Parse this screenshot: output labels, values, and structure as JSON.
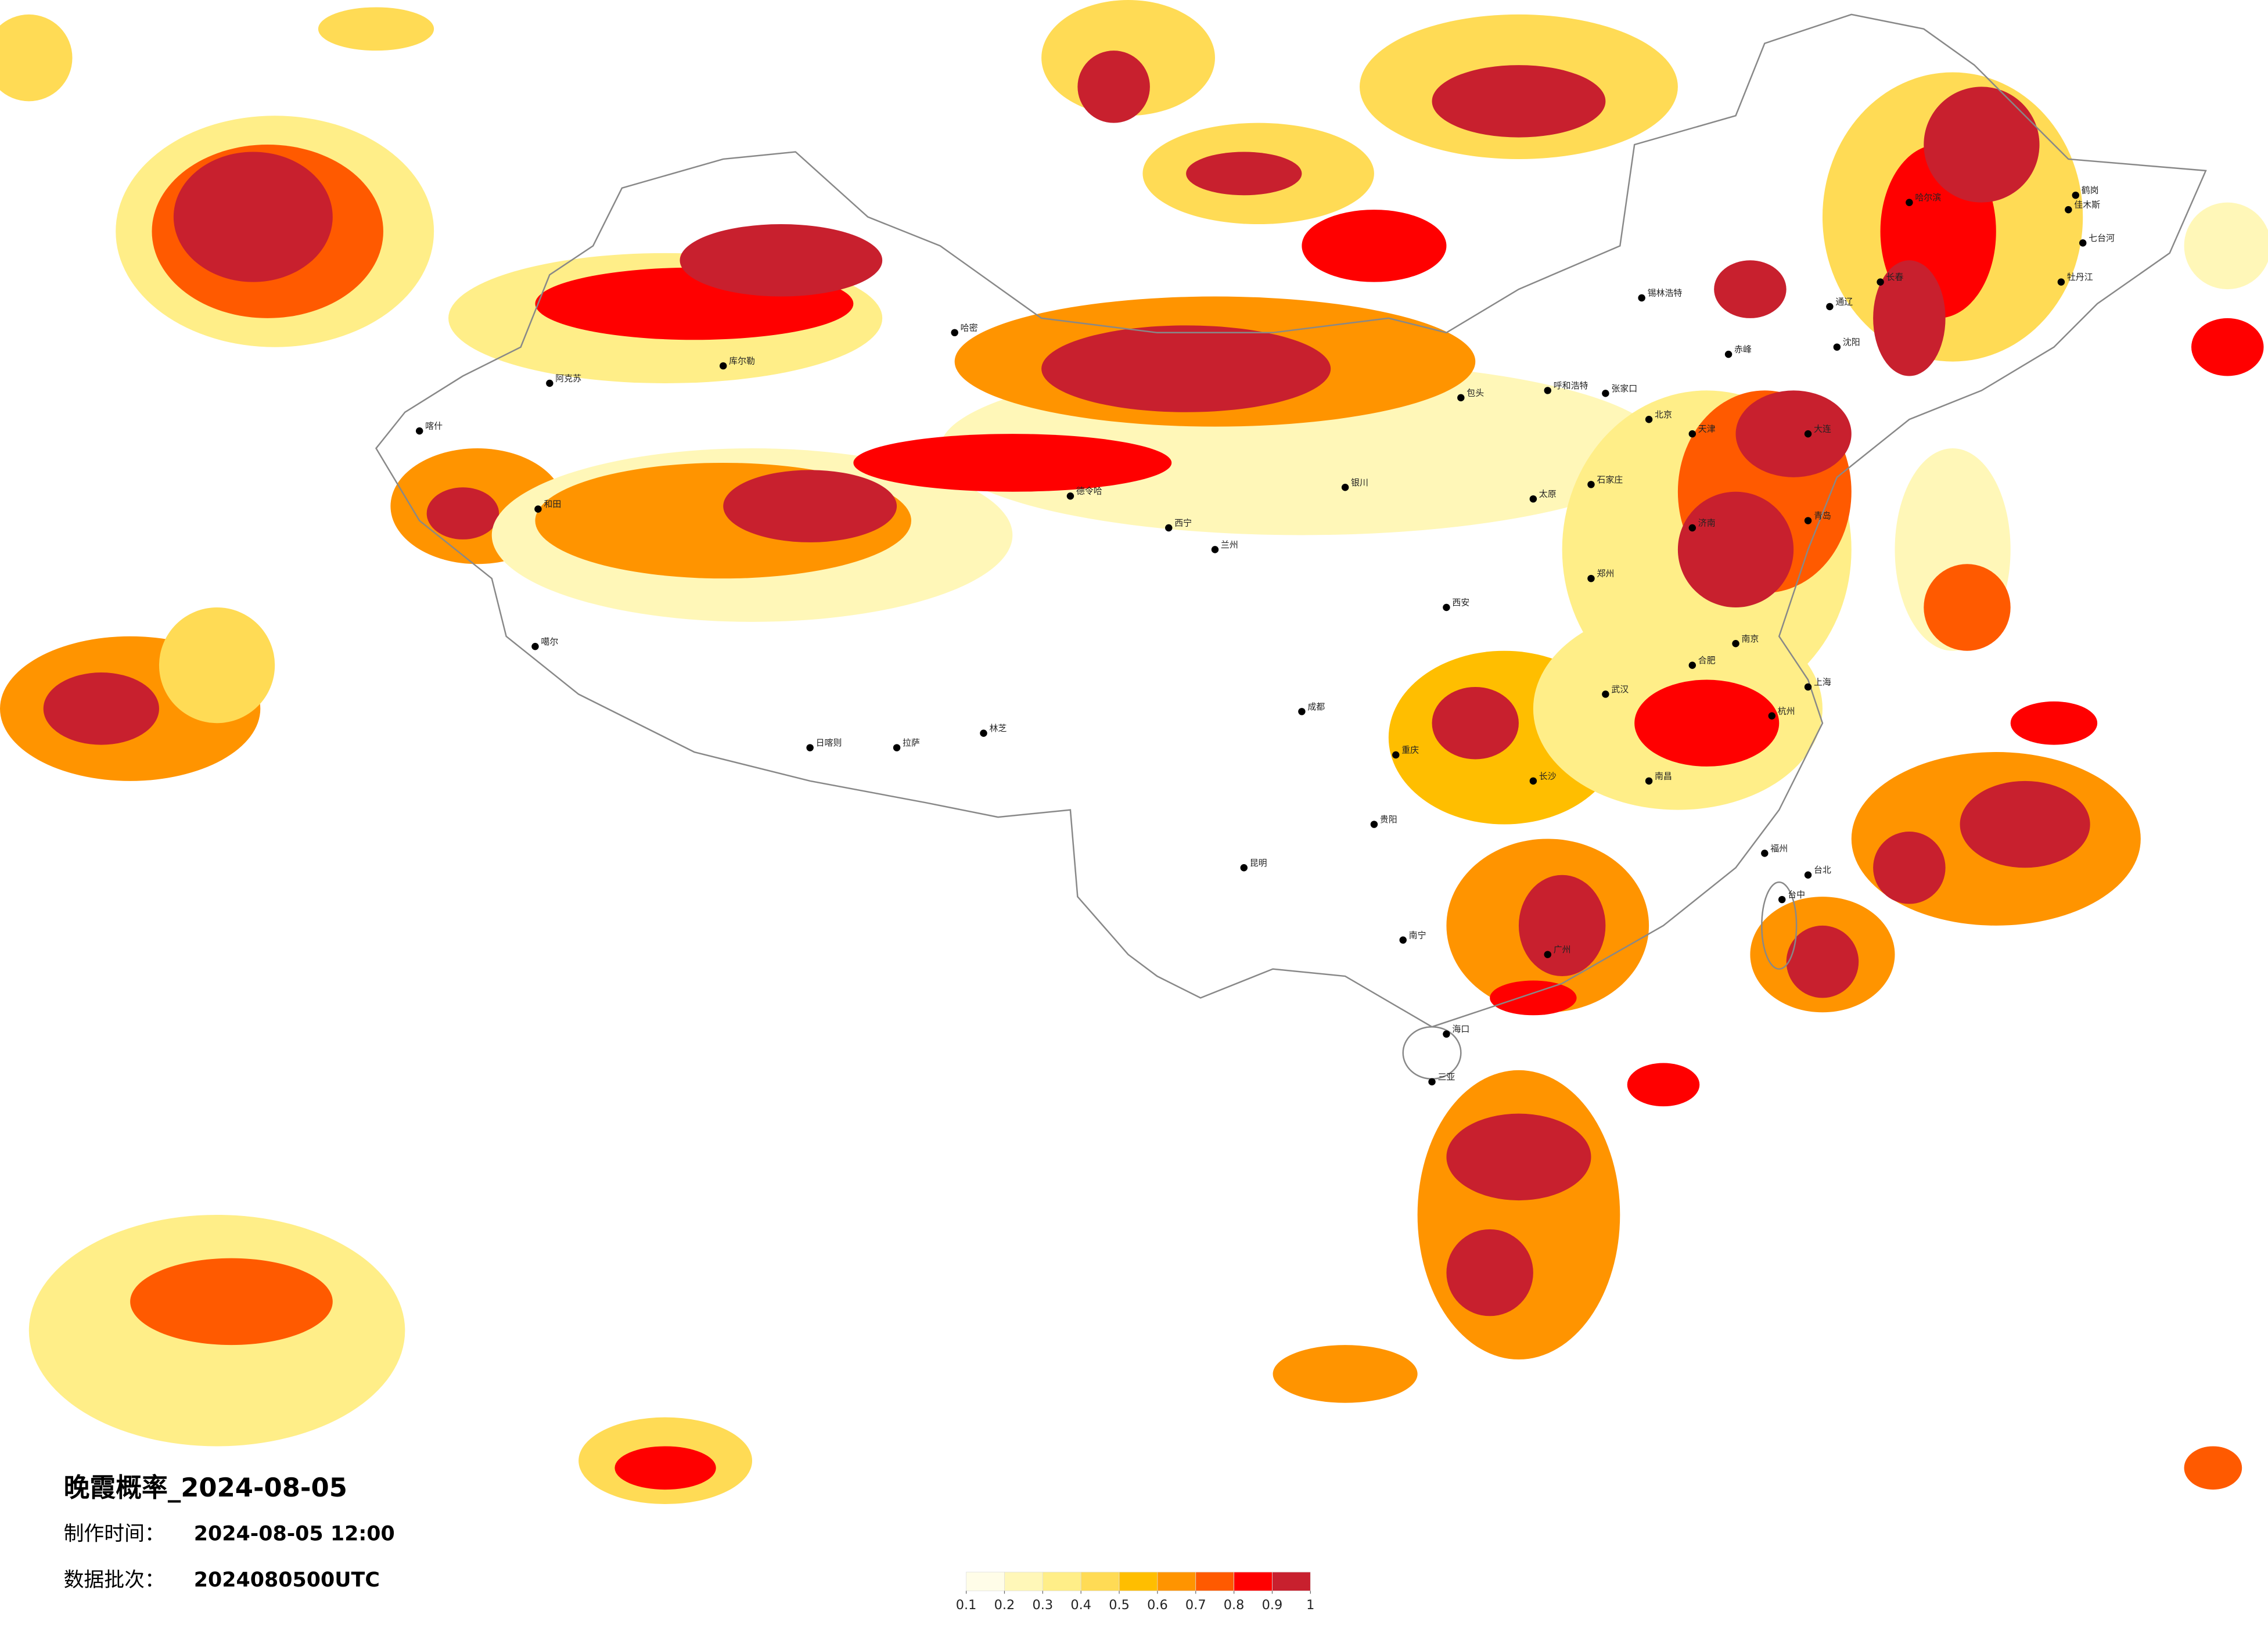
{
  "title": "晚霞概率_2024-08-05",
  "production_time": {
    "label": "制作时间：",
    "value": "2024-08-05 12:00"
  },
  "data_batch": {
    "label": "数据批次：",
    "value": "2024080500UTC"
  },
  "colorbar": {
    "ticks": [
      0.1,
      0.2,
      0.3,
      0.4,
      0.5,
      0.6,
      0.7,
      0.8,
      0.9,
      1
    ],
    "colors": [
      "#fffde8",
      "#fff7b8",
      "#ffee88",
      "#ffdb55",
      "#ffbe00",
      "#ff9400",
      "#ff5a00",
      "#ff0000",
      "#c8202e"
    ]
  },
  "cities": [
    "哈密",
    "库尔勒",
    "阿克苏",
    "喀什",
    "和田",
    "噶尔",
    "日喀则",
    "拉萨",
    "林芝",
    "德令哈",
    "西宁",
    "兰州",
    "银川",
    "呼和浩特",
    "北京",
    "天津",
    "石家庄",
    "太原",
    "济南",
    "郑州",
    "西安",
    "成都",
    "重庆",
    "贵阳",
    "昆明",
    "南宁",
    "广州",
    "长沙",
    "武汉",
    "南昌",
    "合肥",
    "南京",
    "上海",
    "杭州",
    "福州",
    "台北",
    "台中",
    "海口",
    "三亚",
    "沈阳",
    "长春",
    "哈尔滨",
    "牡丹江",
    "佳木斯",
    "大连",
    "青岛",
    "通辽",
    "锡林浩特",
    "张家口",
    "包头",
    "赤峰",
    "鹤岗",
    "七台河"
  ]
}
